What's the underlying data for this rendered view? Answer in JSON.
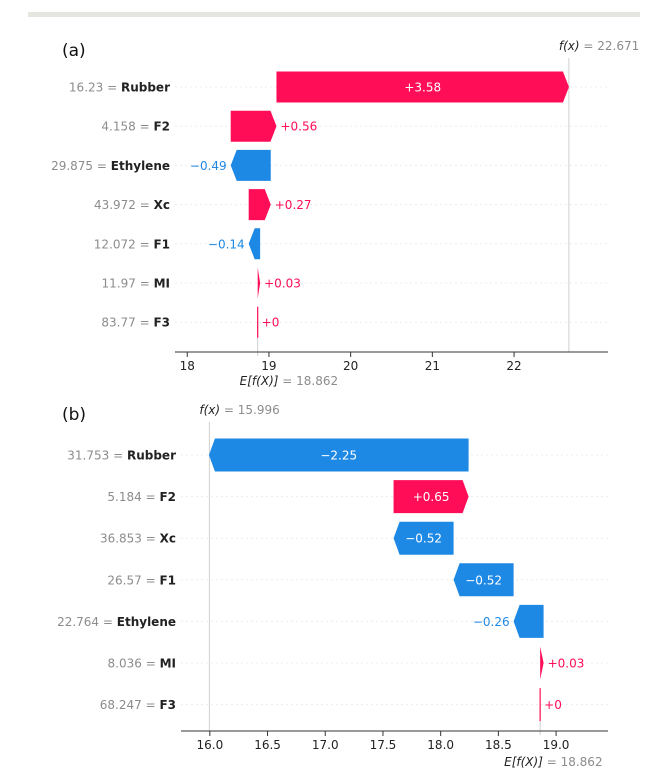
{
  "colors": {
    "positive": "#ff0d57",
    "negative": "#1e88e5",
    "feature_value": "#8c8c8c",
    "feature_name": "#222222",
    "axis": "#333333",
    "band": "#e6e6e0"
  },
  "chart_data": [
    {
      "type": "waterfall",
      "panel_label": "(a)",
      "fx_label": "f(x)",
      "fx_value_text": "= 22.671",
      "fx": 22.671,
      "efx_label": "E[f(X)]",
      "efx_value_text": "= 18.862",
      "efx": 18.862,
      "xlim": [
        17.85,
        23.15
      ],
      "xticks": [
        18,
        19,
        20,
        21,
        22
      ],
      "xtick_labels": [
        "18",
        "19",
        "20",
        "21",
        "22"
      ],
      "features": [
        {
          "value_label": "16.23",
          "name": "Rubber",
          "shap": 3.58,
          "label": "+3.58"
        },
        {
          "value_label": "4.158",
          "name": "F2",
          "shap": 0.56,
          "label": "+0.56"
        },
        {
          "value_label": "29.875",
          "name": "Ethylene",
          "shap": -0.49,
          "label": "−0.49"
        },
        {
          "value_label": "43.972",
          "name": "Xc",
          "shap": 0.27,
          "label": "+0.27"
        },
        {
          "value_label": "12.072",
          "name": "F1",
          "shap": -0.14,
          "label": "−0.14"
        },
        {
          "value_label": "11.97",
          "name": "MI",
          "shap": 0.03,
          "label": "+0.03"
        },
        {
          "value_label": "83.77",
          "name": "F3",
          "shap": 0.0,
          "label": "+0"
        }
      ]
    },
    {
      "type": "waterfall",
      "panel_label": "(b)",
      "fx_label": "f(x)",
      "fx_value_text": "= 15.996",
      "fx": 15.996,
      "efx_label": "E[f(X)]",
      "efx_value_text": "= 18.862",
      "efx": 18.862,
      "xlim": [
        15.75,
        19.45
      ],
      "xticks": [
        16.0,
        16.5,
        17.0,
        17.5,
        18.0,
        18.5,
        19.0
      ],
      "xtick_labels": [
        "16.0",
        "16.5",
        "17.0",
        "17.5",
        "18.0",
        "18.5",
        "19.0"
      ],
      "features": [
        {
          "value_label": "31.753",
          "name": "Rubber",
          "shap": -2.25,
          "label": "−2.25"
        },
        {
          "value_label": "5.184",
          "name": "F2",
          "shap": 0.65,
          "label": "+0.65"
        },
        {
          "value_label": "36.853",
          "name": "Xc",
          "shap": -0.52,
          "label": "−0.52"
        },
        {
          "value_label": "26.57",
          "name": "F1",
          "shap": -0.52,
          "label": "−0.52"
        },
        {
          "value_label": "22.764",
          "name": "Ethylene",
          "shap": -0.26,
          "label": "−0.26"
        },
        {
          "value_label": "8.036",
          "name": "MI",
          "shap": 0.03,
          "label": "+0.03"
        },
        {
          "value_label": "68.247",
          "name": "F3",
          "shap": 0.0,
          "label": "+0"
        }
      ]
    }
  ]
}
